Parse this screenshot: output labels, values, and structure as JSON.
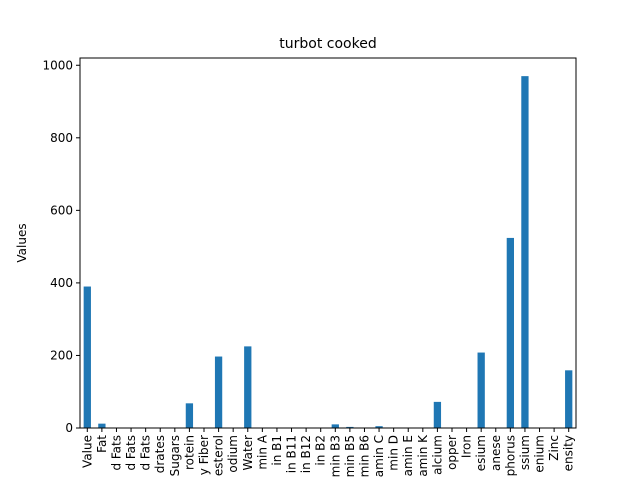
{
  "chart_data": {
    "type": "bar",
    "title": "turbot cooked",
    "xlabel": "",
    "ylabel": "Values",
    "ylim": [
      0,
      1020
    ],
    "yticks": [
      0,
      200,
      400,
      600,
      800,
      1000
    ],
    "grid": false,
    "legend": "none",
    "bar_color": "#1f77b4",
    "categories": [
      "Value",
      "Fat",
      "d Fats",
      "d Fats",
      "d Fats",
      "drates",
      "Sugars",
      "rotein",
      "y Fiber",
      "esterol",
      "odium",
      "Water",
      "min A",
      "in B1",
      "in B11",
      "in B12",
      "in B2",
      "min B3",
      "min B5",
      "min B6",
      "amin C",
      "min D",
      "amin E",
      "amin K",
      "alcium",
      "opper",
      "Iron",
      "esium",
      "anese",
      "phorus",
      "ssium",
      "enium",
      "Zinc",
      "ensity"
    ],
    "values": [
      390,
      12,
      0,
      0,
      0,
      0,
      0,
      68,
      0,
      197,
      0,
      225,
      0,
      0,
      0,
      0,
      0,
      10,
      3,
      1,
      5,
      0,
      0,
      0,
      72,
      0,
      0,
      208,
      0,
      524,
      970,
      0,
      0,
      159
    ]
  }
}
